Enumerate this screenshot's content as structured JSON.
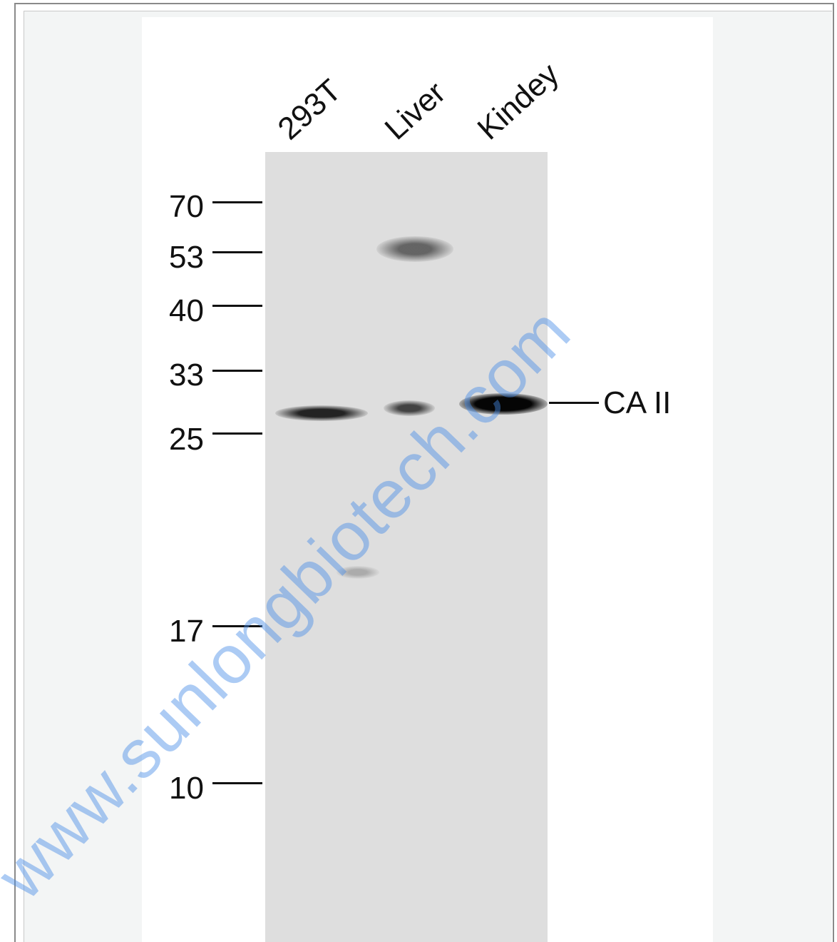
{
  "lanes": [
    {
      "label": "293T"
    },
    {
      "label": "Liver"
    },
    {
      "label": "Kindey"
    }
  ],
  "markers": [
    {
      "label": "70"
    },
    {
      "label": "53"
    },
    {
      "label": "40"
    },
    {
      "label": "33"
    },
    {
      "label": "25"
    },
    {
      "label": "17"
    },
    {
      "label": "10"
    }
  ],
  "target": {
    "label": "CA II"
  },
  "watermark": {
    "text": "www.sunlongbiotech.com"
  },
  "colors": {
    "membrane": "#dedede",
    "band": "#1a1a1a",
    "watermark": "#468ce6"
  }
}
